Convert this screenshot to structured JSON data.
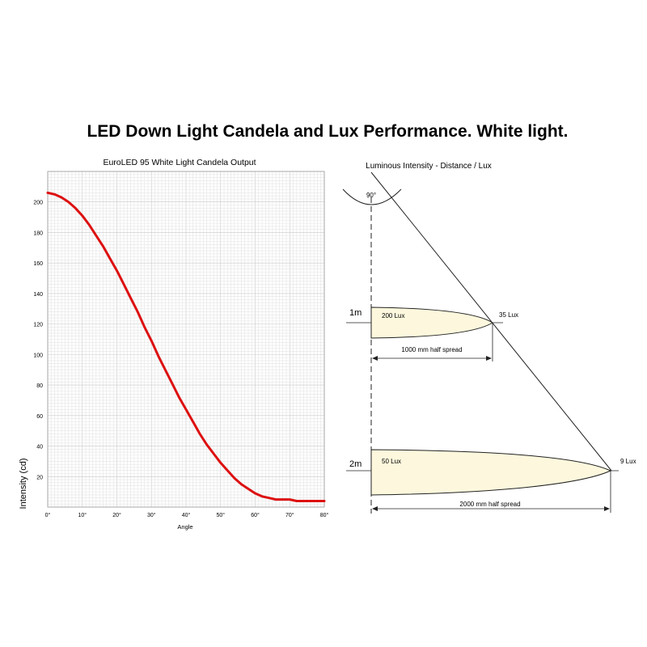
{
  "title": "LED Down Light Candela and Lux Performance. White light.",
  "chart_data": [
    {
      "type": "line",
      "title": "EuroLED 95 White Light Candela Output",
      "xlabel": "Angle",
      "ylabel": "Intensity (cd)",
      "xlim": [
        0,
        80
      ],
      "ylim": [
        0,
        220
      ],
      "x_ticks": [
        "0°",
        "10°",
        "20°",
        "30°",
        "40°",
        "50°",
        "60°",
        "70°",
        "80°"
      ],
      "y_ticks": [
        "20",
        "40",
        "60",
        "80",
        "100",
        "120",
        "140",
        "160",
        "180",
        "200"
      ],
      "grid": true,
      "line_color": "#dd1111",
      "series": [
        {
          "x": [
            0,
            2,
            4,
            6,
            8,
            10,
            12,
            14,
            16,
            18,
            20,
            22,
            24,
            26,
            28,
            30,
            32,
            34,
            36,
            38,
            40,
            42,
            44,
            46,
            48,
            50,
            52,
            54,
            56,
            58,
            60,
            62,
            64,
            66,
            68,
            70,
            72,
            74,
            76,
            78,
            80
          ],
          "y": [
            206,
            205,
            203,
            200,
            196,
            191,
            185,
            178,
            171,
            163,
            155,
            146,
            137,
            128,
            118,
            109,
            99,
            90,
            81,
            72,
            64,
            56,
            48,
            41,
            35,
            29,
            24,
            19,
            15,
            12,
            9,
            7,
            6,
            5,
            5,
            5,
            4,
            4,
            4,
            4,
            4
          ]
        }
      ]
    },
    {
      "type": "diagram",
      "title": "Luminous Intensity - Distance / Lux",
      "beam_angle": "90°",
      "levels": [
        {
          "distance": "1m",
          "center_lux": "200 Lux",
          "edge_lux": "35 Lux",
          "spread": "1000 mm half spread"
        },
        {
          "distance": "2m",
          "center_lux": "50 Lux",
          "edge_lux": "9 Lux",
          "spread": "2000 mm half spread"
        }
      ],
      "fill_color": "#fdf8dd"
    }
  ]
}
